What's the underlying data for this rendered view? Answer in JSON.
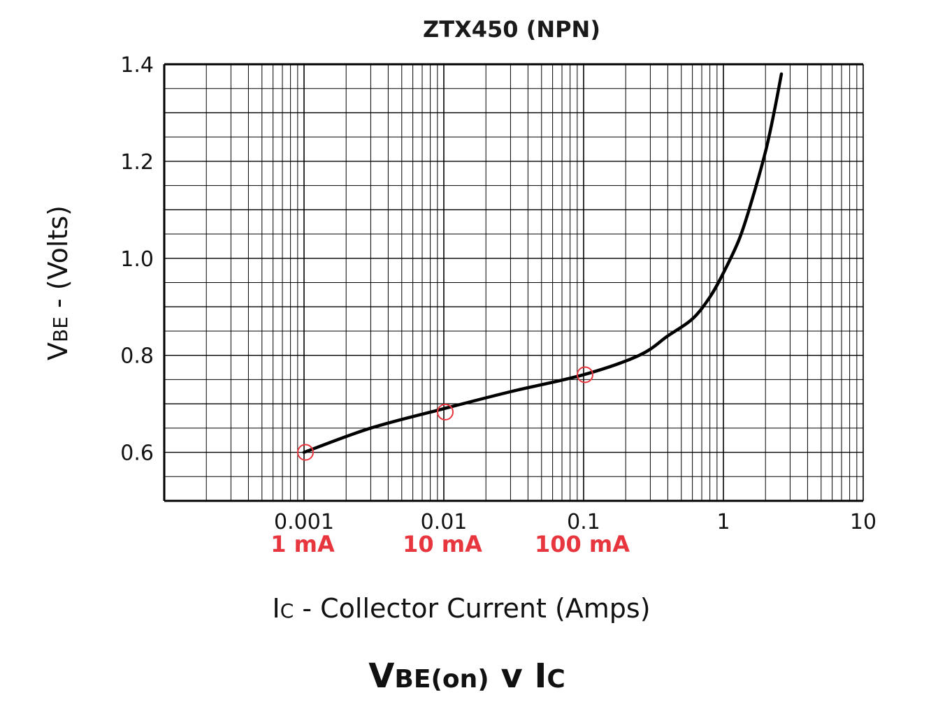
{
  "chart_data": {
    "type": "line",
    "title": "ZTX450 (NPN)",
    "xlabel_prefix": "I",
    "xlabel_sub": "C",
    "xlabel_rest": " - Collector Current (Amps)",
    "ylabel_prefix": "V",
    "ylabel_sub": "BE",
    "ylabel_rest": " - (Volts)",
    "x_scale": "log",
    "xlim": [
      0.0001,
      10
    ],
    "ylim": [
      0.5,
      1.4
    ],
    "x_ticks": [
      {
        "value": 0.001,
        "label": "0.001"
      },
      {
        "value": 0.01,
        "label": "0.01"
      },
      {
        "value": 0.1,
        "label": "0.1"
      },
      {
        "value": 1,
        "label": "1"
      },
      {
        "value": 10,
        "label": "10"
      }
    ],
    "y_ticks": [
      {
        "value": 0.6,
        "label": "0.6"
      },
      {
        "value": 0.8,
        "label": "0.8"
      },
      {
        "value": 1.0,
        "label": "1.0"
      },
      {
        "value": 1.2,
        "label": "1.2"
      },
      {
        "value": 1.4,
        "label": "1.4"
      }
    ],
    "grid": true,
    "series": [
      {
        "color": "#000000",
        "x": [
          0.001,
          0.003,
          0.01,
          0.03,
          0.1,
          0.25,
          0.4,
          0.6,
          0.8,
          1.0,
          1.3,
          1.6,
          2.0,
          2.3,
          2.6
        ],
        "y": [
          0.6,
          0.65,
          0.69,
          0.725,
          0.76,
          0.8,
          0.84,
          0.875,
          0.92,
          0.97,
          1.04,
          1.12,
          1.22,
          1.3,
          1.38
        ]
      }
    ],
    "annotations": [
      {
        "x": 0.001,
        "y": 0.6,
        "label": "1 mA",
        "color": "#e8363f"
      },
      {
        "x": 0.01,
        "y": 0.683,
        "label": "10 mA",
        "color": "#e8363f"
      },
      {
        "x": 0.1,
        "y": 0.76,
        "label": "100 mA",
        "color": "#e8363f"
      }
    ],
    "caption_main": "V",
    "caption_sub1": "BE(on)",
    "caption_mid": " v I",
    "caption_sub2": "C"
  }
}
